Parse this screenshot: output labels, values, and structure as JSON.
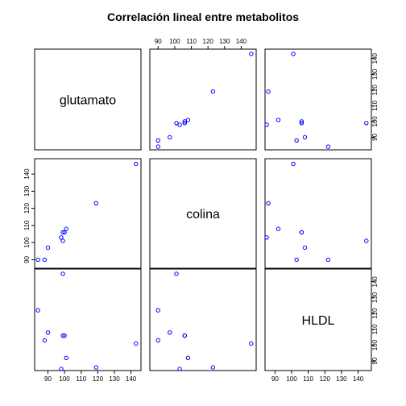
{
  "chart_data": {
    "type": "scatter",
    "title": "Correlación lineal entre metabolitos",
    "variables": [
      {
        "name": "glutamato",
        "ticks": [
          90,
          100,
          110,
          120,
          130,
          140
        ],
        "range": [
          82,
          146
        ]
      },
      {
        "name": "colina",
        "ticks": [
          90,
          100,
          110,
          120,
          130,
          140
        ],
        "range": [
          85,
          149
        ]
      },
      {
        "name": "HLDL",
        "ticks": [
          90,
          100,
          110,
          120,
          130,
          140
        ],
        "range": [
          84,
          148
        ]
      }
    ],
    "observations": [
      {
        "glutamato": 84,
        "colina": 90,
        "HLDL": 122
      },
      {
        "glutamato": 88,
        "colina": 90,
        "HLDL": 103
      },
      {
        "glutamato": 90,
        "colina": 97,
        "HLDL": 108
      },
      {
        "glutamato": 98,
        "colina": 103,
        "HLDL": 85
      },
      {
        "glutamato": 99,
        "colina": 101,
        "HLDL": 145
      },
      {
        "glutamato": 99,
        "colina": 106,
        "HLDL": 106
      },
      {
        "glutamato": 100,
        "colina": 106,
        "HLDL": 106
      },
      {
        "glutamato": 101,
        "colina": 108,
        "HLDL": 92
      },
      {
        "glutamato": 119,
        "colina": 123,
        "HLDL": 86
      },
      {
        "glutamato": 143,
        "colina": 146,
        "HLDL": 101
      }
    ],
    "point_color": "#0000ff",
    "grid": false,
    "legend": "none"
  }
}
